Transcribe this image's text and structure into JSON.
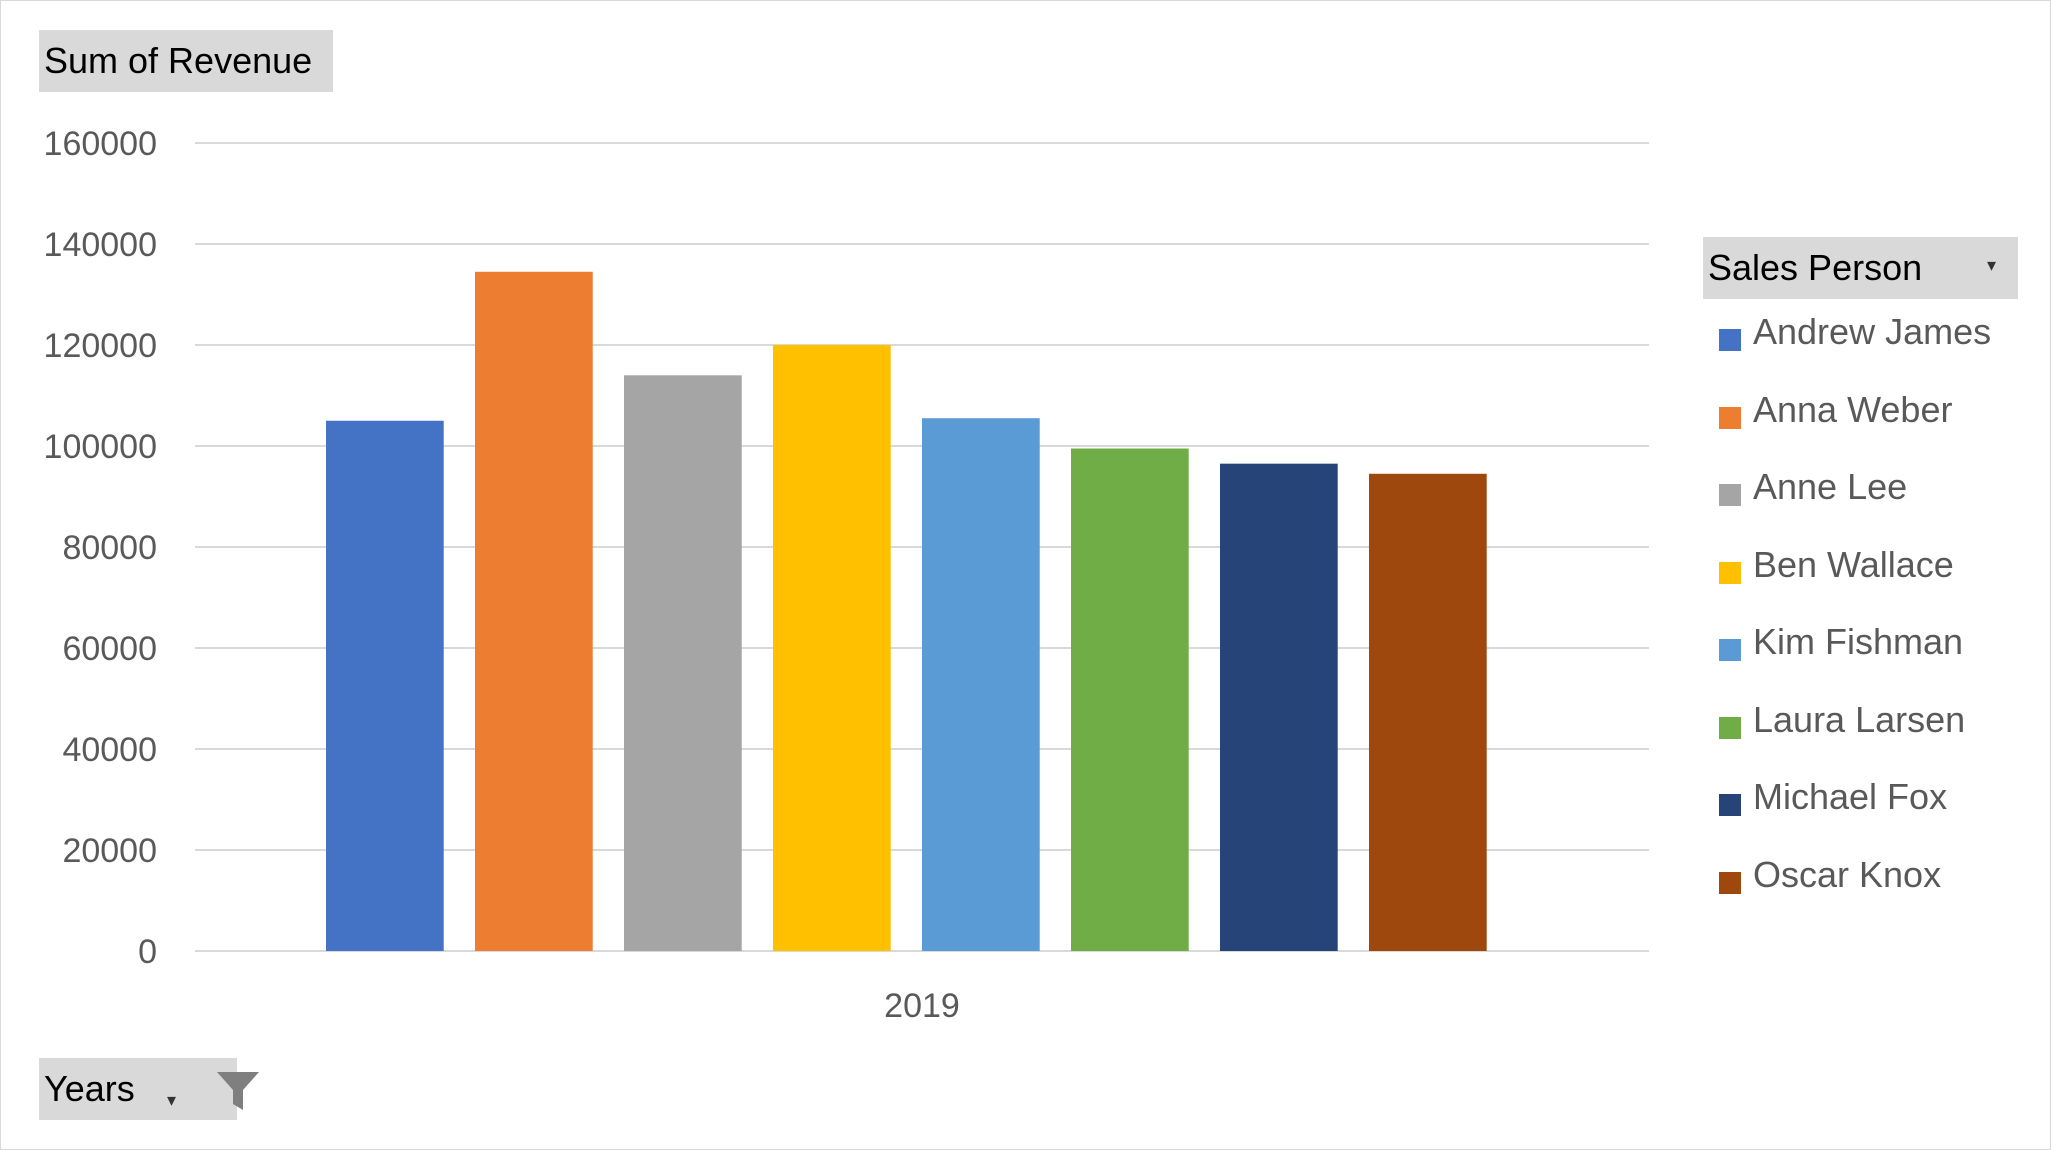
{
  "value_field": {
    "label": "Sum of Revenue"
  },
  "legend_field": {
    "label": "Sales Person",
    "icon": "dropdown-arrow-icon"
  },
  "axis_field": {
    "label": "Years",
    "icon": "filter-funnel-icon"
  },
  "chart_data": {
    "type": "bar",
    "categories": [
      "2019"
    ],
    "ylim": [
      0,
      160000
    ],
    "yticks": [
      0,
      20000,
      40000,
      60000,
      80000,
      100000,
      120000,
      140000,
      160000
    ],
    "grid": true,
    "legend_position": "right",
    "series": [
      {
        "name": "Andrew James",
        "values": [
          105000
        ],
        "color": "#4472C4"
      },
      {
        "name": "Anna Weber",
        "values": [
          134500
        ],
        "color": "#ED7D31"
      },
      {
        "name": "Anne Lee",
        "values": [
          114000
        ],
        "color": "#A5A5A5"
      },
      {
        "name": "Ben Wallace",
        "values": [
          120000
        ],
        "color": "#FFC000"
      },
      {
        "name": "Kim Fishman",
        "values": [
          105500
        ],
        "color": "#5B9BD5"
      },
      {
        "name": "Laura Larsen",
        "values": [
          99500
        ],
        "color": "#70AD47"
      },
      {
        "name": "Michael Fox",
        "values": [
          96500
        ],
        "color": "#264478"
      },
      {
        "name": "Oscar Knox",
        "values": [
          94500
        ],
        "color": "#9E480E"
      }
    ]
  }
}
